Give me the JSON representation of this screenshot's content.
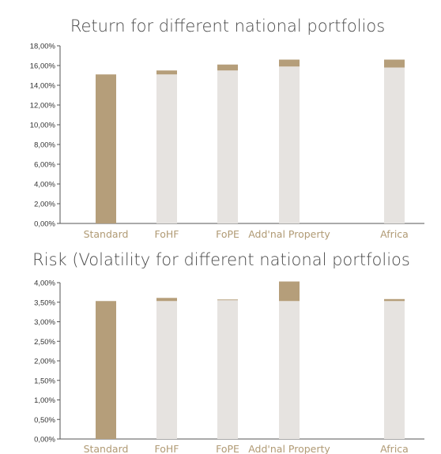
{
  "chart_data": [
    {
      "type": "bar",
      "stacked": true,
      "title": "Return for different national portfolios",
      "categories": [
        "Standard",
        "FoHF",
        "FoPE",
        "Add'nal Property",
        "Africa"
      ],
      "y_ticks": [
        "0,00%",
        "2,00%",
        "4,00%",
        "6,00%",
        "8,00%",
        "10,00%",
        "12,00%",
        "14,00%",
        "16,00%",
        "18,00%"
      ],
      "ylim": [
        0,
        18
      ],
      "series": [
        {
          "role": "base",
          "values": [
            15.1,
            15.1,
            15.5,
            15.9,
            15.8
          ]
        },
        {
          "role": "top",
          "values": [
            0.0,
            0.4,
            0.6,
            0.7,
            0.8
          ]
        }
      ],
      "grid": false
    },
    {
      "type": "bar",
      "stacked": true,
      "title": "Risk (Volatility for different national portfolios",
      "categories": [
        "Standard",
        "FoHF",
        "FoPE",
        "Add'nal Property",
        "Africa"
      ],
      "y_ticks": [
        "0,00%",
        "0,50%",
        "1,00%",
        "1,50%",
        "2,00%",
        "2,50%",
        "3,00%",
        "3,50%",
        "4,00%"
      ],
      "ylim": [
        0,
        4
      ],
      "series": [
        {
          "role": "base",
          "values": [
            3.53,
            3.53,
            3.55,
            3.53,
            3.53
          ]
        },
        {
          "role": "top",
          "values": [
            0.0,
            0.08,
            0.02,
            0.5,
            0.05
          ]
        }
      ],
      "grid": false
    }
  ],
  "colors": {
    "standard": "#b59e7a",
    "base": "#e6e3e0",
    "top": "#b59e7a",
    "category_label": "#b09a74",
    "title": "#4a4a4a"
  }
}
